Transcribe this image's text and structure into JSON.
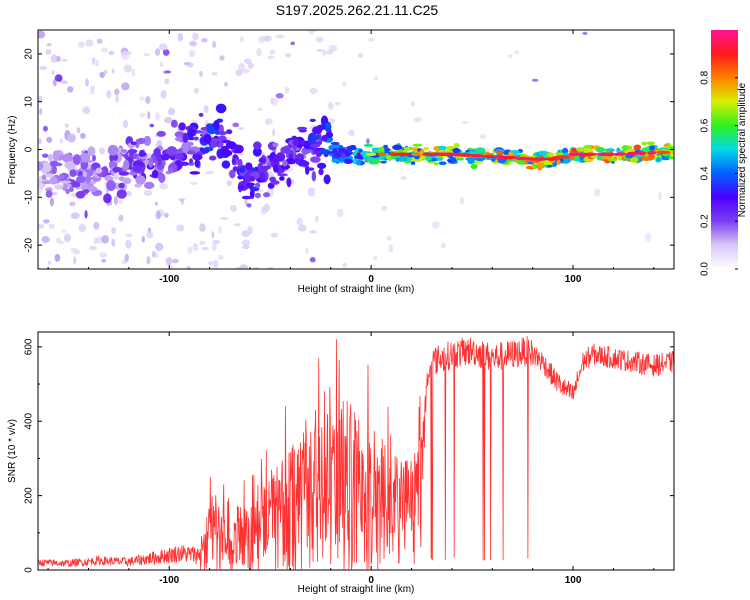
{
  "page_title": "S197.2025.262.21.11.C25",
  "chart_data": [
    {
      "type": "heatmap",
      "title": "S197.2025.262.21.11.C25",
      "xlabel": "Height of straight line (km)",
      "ylabel": "Frequency (Hz)",
      "xlim": [
        -165,
        150
      ],
      "ylim": [
        -25,
        25
      ],
      "xticks": [
        -100,
        0,
        100
      ],
      "yticks": [
        -20,
        -10,
        0,
        10,
        20
      ],
      "colorbar": {
        "label": "Normalized spectral amplitude",
        "range": [
          0,
          1
        ],
        "ticks": [
          0.0,
          0.2,
          0.4,
          0.6,
          0.8
        ],
        "colors": [
          "#ffffff",
          "#d9c8f5",
          "#7c3ff0",
          "#4b00ff",
          "#0060ff",
          "#00d8e8",
          "#30f020",
          "#d8ef00",
          "#ff8000",
          "#ff1a1a",
          "#ff1493"
        ]
      },
      "ridge": {
        "description_points_x": [
          -165,
          -140,
          -110,
          -90,
          -80,
          -70,
          -60,
          -55,
          -45,
          -35,
          -25,
          -15,
          0,
          20,
          40,
          60,
          80,
          90,
          100,
          120,
          150
        ],
        "description_points_y": [
          -4,
          -5,
          -2,
          1,
          2,
          0,
          -8,
          -5,
          -2,
          0.5,
          1,
          -1,
          -1,
          -1,
          -1,
          -1.5,
          -2,
          -2,
          -1,
          -1,
          -0.5
        ],
        "amplitude": [
          0.15,
          0.2,
          0.25,
          0.3,
          0.35,
          0.3,
          0.35,
          0.3,
          0.3,
          0.3,
          0.35,
          0.45,
          0.55,
          0.7,
          0.7,
          0.75,
          0.8,
          0.7,
          0.8,
          0.85,
          0.7
        ]
      }
    },
    {
      "type": "line",
      "xlabel": "Height of straight line (km)",
      "ylabel": "SNR (10 * v/v)",
      "xlim": [
        -165,
        150
      ],
      "ylim": [
        0,
        640
      ],
      "xticks": [
        -100,
        0,
        100
      ],
      "yticks": [
        0,
        200,
        400,
        600
      ],
      "color": "#ff3030",
      "series": [
        {
          "name": "SNR",
          "x": [
            -165,
            -150,
            -135,
            -120,
            -105,
            -95,
            -85,
            -80,
            -75,
            -70,
            -60,
            -50,
            -40,
            -30,
            -20,
            -12,
            -5,
            0,
            5,
            10,
            15,
            20,
            25,
            28,
            30,
            40,
            50,
            60,
            70,
            78,
            85,
            90,
            95,
            100,
            105,
            110,
            120,
            130,
            140,
            150
          ],
          "values": [
            20,
            18,
            25,
            22,
            35,
            45,
            40,
            120,
            110,
            95,
            130,
            160,
            210,
            260,
            290,
            310,
            260,
            240,
            250,
            210,
            230,
            200,
            270,
            520,
            560,
            580,
            590,
            570,
            580,
            590,
            560,
            520,
            490,
            470,
            560,
            580,
            570,
            560,
            550,
            560
          ],
          "spread": [
            10,
            10,
            12,
            12,
            20,
            25,
            25,
            60,
            60,
            60,
            80,
            100,
            120,
            140,
            150,
            160,
            150,
            140,
            120,
            110,
            120,
            100,
            120,
            40,
            40,
            40,
            40,
            40,
            40,
            40,
            30,
            30,
            30,
            30,
            30,
            30,
            30,
            30,
            30,
            30
          ]
        }
      ]
    }
  ]
}
